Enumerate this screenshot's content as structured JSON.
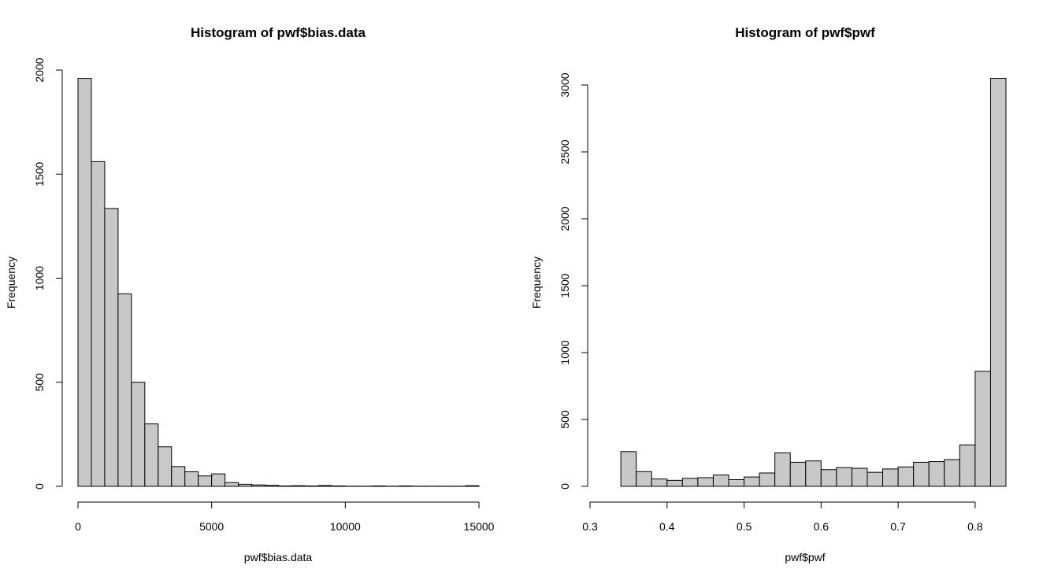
{
  "chart_data": [
    {
      "type": "bar",
      "title": "Histogram of pwf$bias.data",
      "xlabel": "pwf$bias.data",
      "ylabel": "Frequency",
      "xlim": [
        0,
        15000
      ],
      "ylim": [
        0,
        2000
      ],
      "xticks": [
        0,
        5000,
        10000,
        15000
      ],
      "yticks": [
        0,
        500,
        1000,
        1500,
        2000
      ],
      "bin_width": 500,
      "bin_start": 0,
      "values": [
        1960,
        1560,
        1335,
        925,
        500,
        300,
        190,
        95,
        70,
        50,
        60,
        18,
        10,
        7,
        5,
        2,
        3,
        2,
        4,
        2,
        1,
        1,
        2,
        1,
        2,
        1,
        1,
        1,
        1,
        3
      ],
      "grid": false
    },
    {
      "type": "bar",
      "title": "Histogram of pwf$pwf",
      "xlabel": "pwf$pwf",
      "ylabel": "Frequency",
      "xlim": [
        0.3,
        0.84
      ],
      "ylim": [
        0,
        3000
      ],
      "xticks": [
        0.3,
        0.4,
        0.5,
        0.6,
        0.7,
        0.8
      ],
      "yticks": [
        0,
        500,
        1000,
        1500,
        2000,
        2500,
        3000
      ],
      "bin_width": 0.02,
      "bin_start": 0.32,
      "values": [
        0,
        260,
        110,
        55,
        45,
        60,
        65,
        85,
        50,
        70,
        100,
        250,
        180,
        190,
        125,
        140,
        135,
        105,
        130,
        145,
        180,
        185,
        200,
        310,
        860,
        3050
      ],
      "grid": false
    }
  ]
}
